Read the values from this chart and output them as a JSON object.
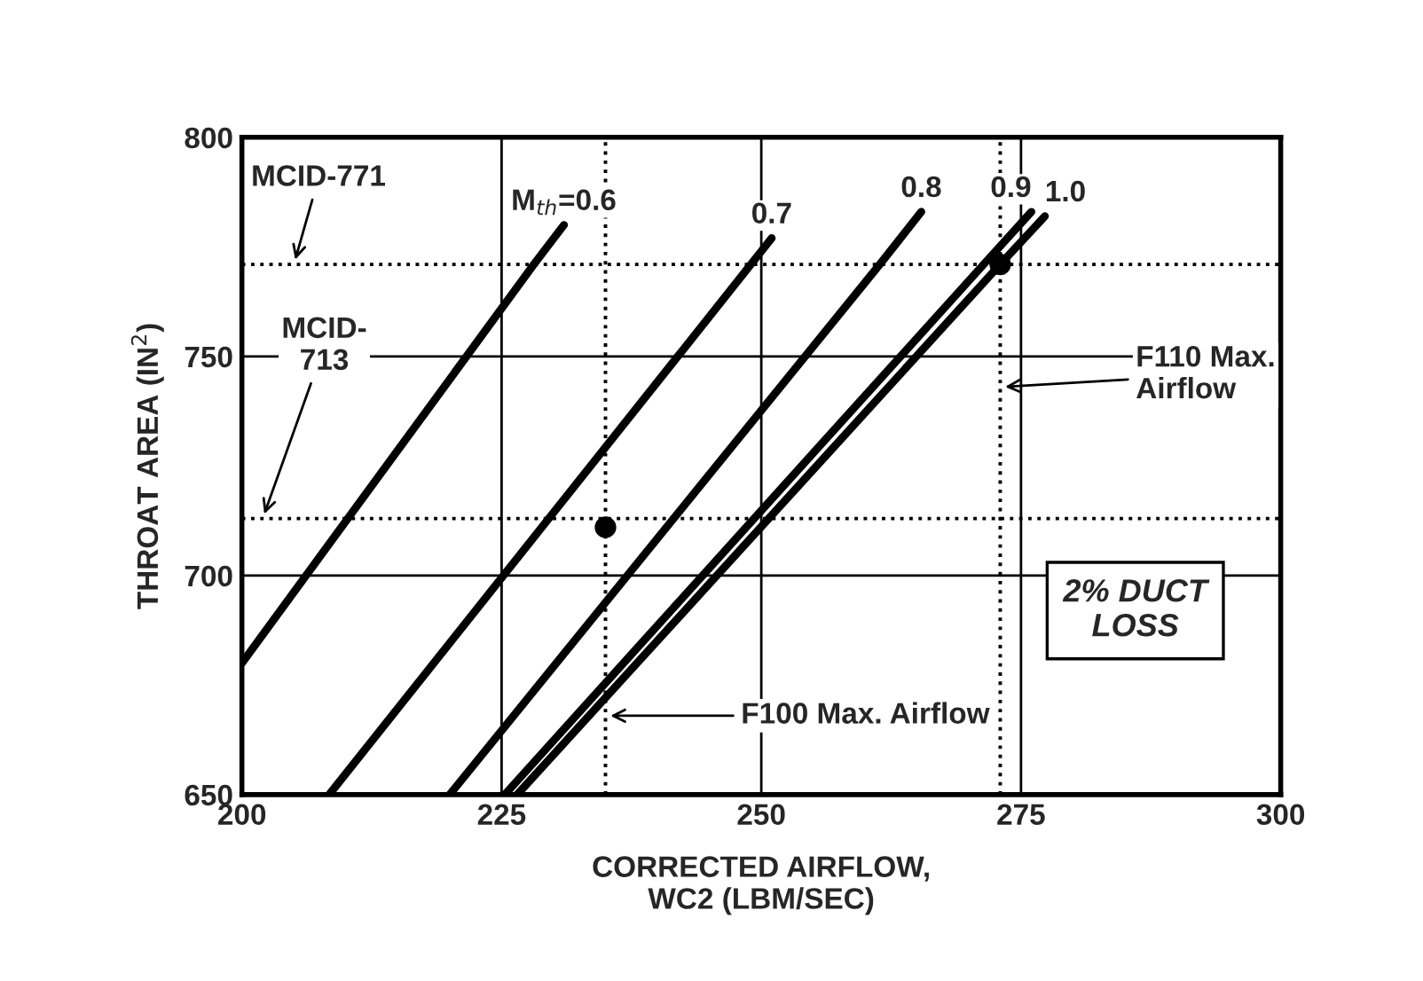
{
  "chart_data": {
    "type": "line",
    "xlabel": "CORRECTED AIRFLOW,\nWC2 (LBM/SEC)",
    "ylabel": "THROAT AREA (IN$^{2}$)",
    "xlim": [
      200,
      300
    ],
    "ylim": [
      650,
      800
    ],
    "xticks": [
      200,
      225,
      250,
      275,
      300
    ],
    "yticks": [
      650,
      700,
      750,
      800
    ],
    "grid": true,
    "legend": false,
    "line_style": "solid",
    "marker": "none",
    "series": [
      {
        "name": "M$_{th}$=0.6",
        "color": "#000000",
        "x": [
          200,
          228.1,
          231
        ],
        "values": [
          680,
          771,
          780
        ]
      },
      {
        "name": "0.7",
        "color": "#000000",
        "x": [
          208.4,
          249,
          251
        ],
        "values": [
          650,
          771,
          777
        ]
      },
      {
        "name": "0.8",
        "color": "#000000",
        "x": [
          220,
          261.4,
          265.4
        ],
        "values": [
          650,
          771,
          783
        ]
      },
      {
        "name": "0.9",
        "color": "#000000",
        "x": [
          225.3,
          271.4,
          276
        ],
        "values": [
          650,
          771,
          783
        ]
      },
      {
        "name": "1.0",
        "color": "#000000",
        "x": [
          226.5,
          273,
          277.3
        ],
        "values": [
          650,
          771,
          782
        ]
      },
      {
        "type": "scatter",
        "marker": "circle",
        "color": "#000000",
        "x": [
          235,
          273
        ],
        "values": [
          711,
          771
        ]
      }
    ],
    "ref_lines": [
      {
        "axis": "y",
        "value": 771,
        "label": "MCID-771",
        "color": "#000000",
        "line_style": "dotted"
      },
      {
        "axis": "y",
        "value": 713,
        "label": "MCID-\n713",
        "color": "#000000",
        "line_style": "dotted"
      },
      {
        "axis": "x",
        "value": 235,
        "label": "F100 Max. Airflow",
        "color": "#000000",
        "line_style": "dotted"
      },
      {
        "axis": "x",
        "value": 273,
        "label": "F110 Max.\nAirflow",
        "color": "#000000",
        "line_style": "dotted"
      }
    ],
    "annotations": [
      "2% DUCT\nLOSS"
    ]
  }
}
